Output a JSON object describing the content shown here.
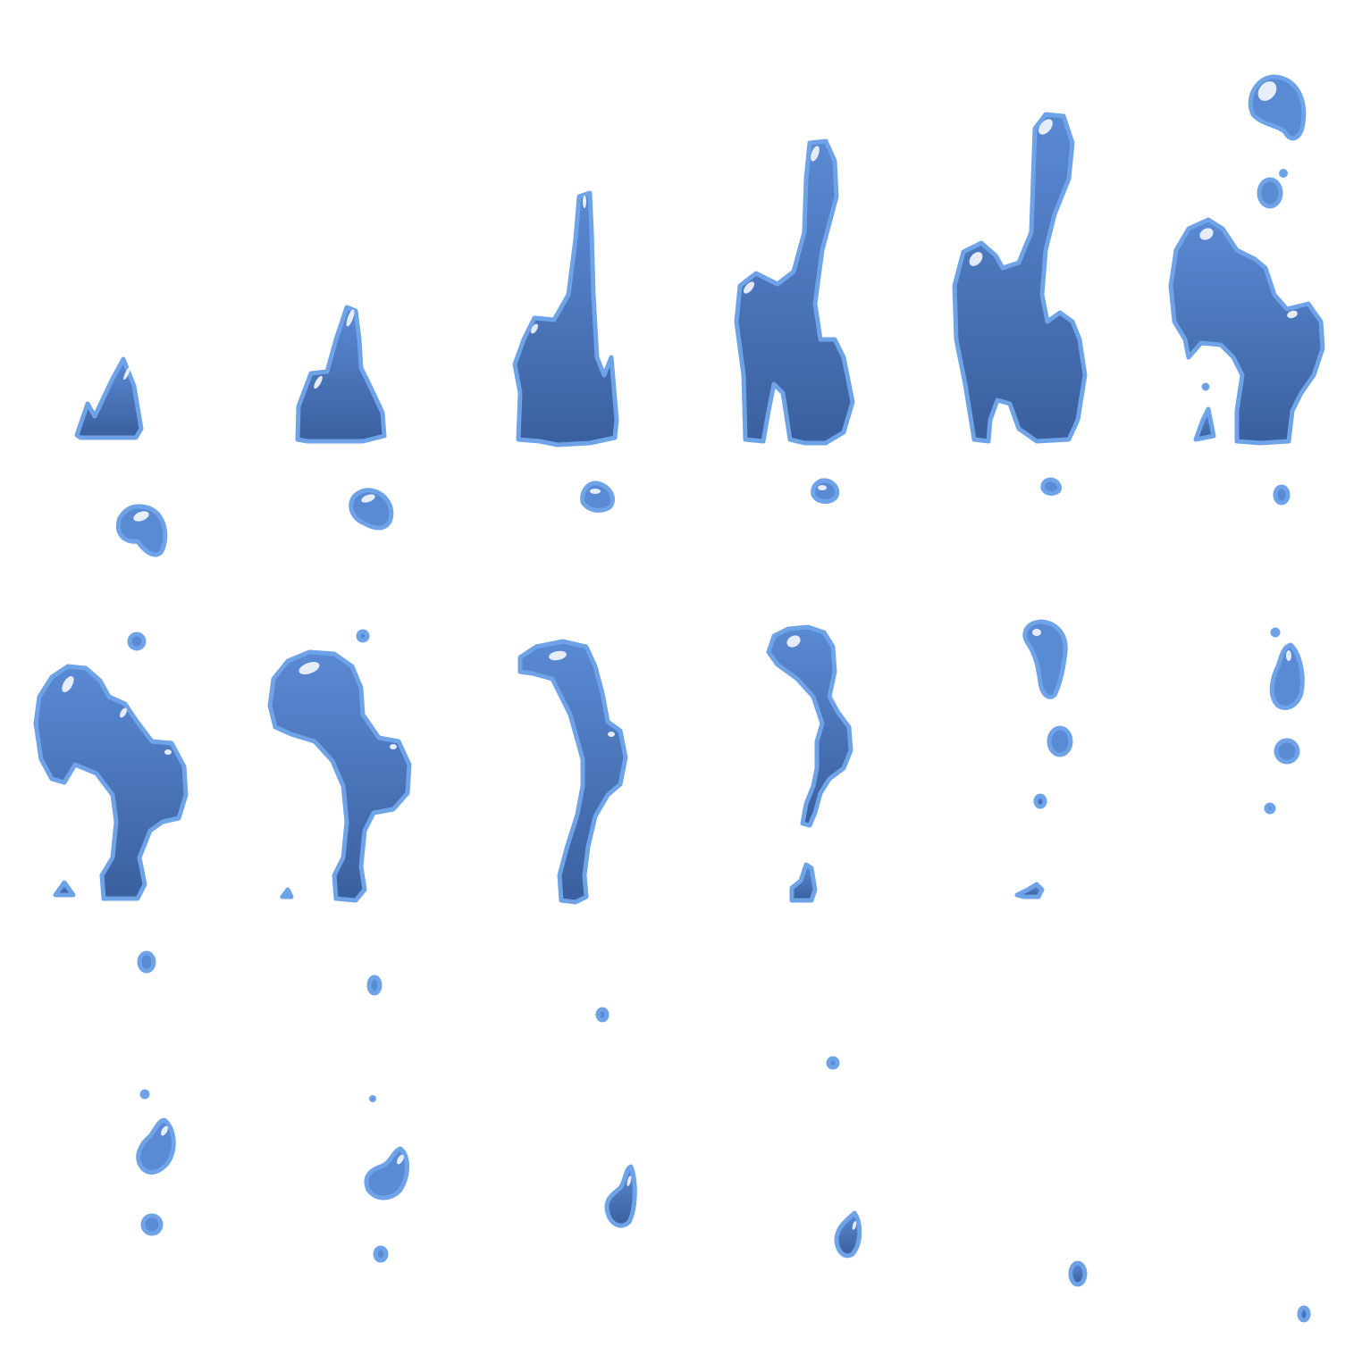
{
  "sheet": {
    "frames": 18,
    "columns": 6,
    "rows": 3,
    "background": "#ffffff"
  },
  "palette": {
    "rim": "#6fa3e8",
    "body_top": "#5a8ad4",
    "body_bottom": "#3a5f9e",
    "dark": "#2f4f8c",
    "highlight": "#ffffff"
  }
}
